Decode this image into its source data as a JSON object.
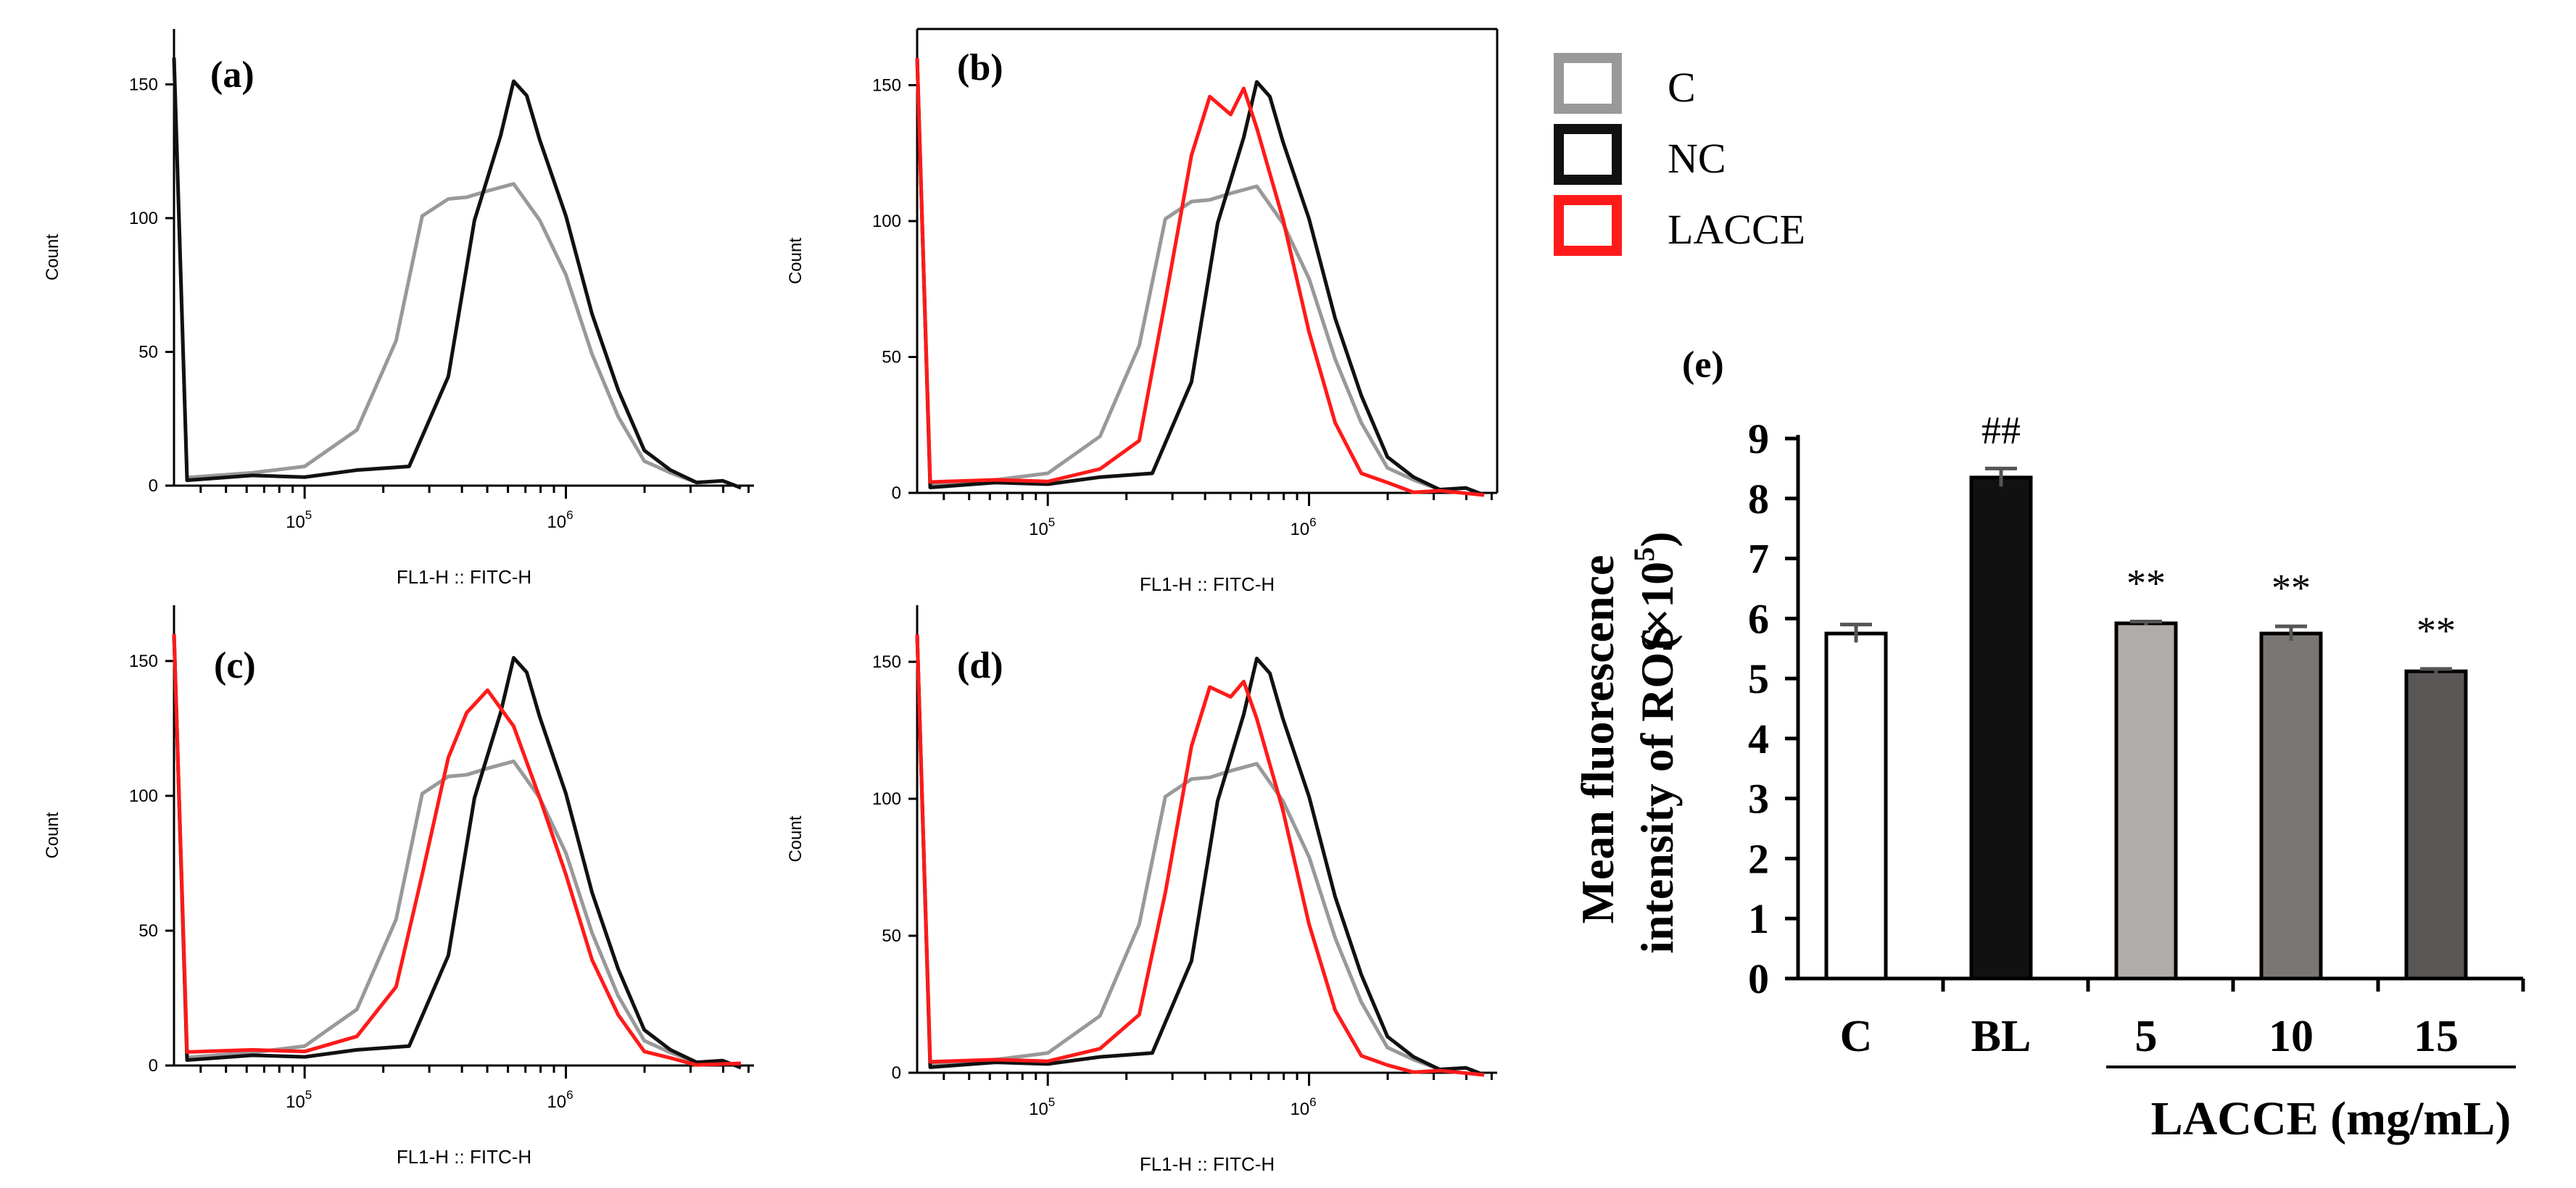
{
  "legend": [
    {
      "label": "C",
      "color": "#999999"
    },
    {
      "label": "NC",
      "color": "#111111"
    },
    {
      "label": "LACCE",
      "color": "#ff1a1a"
    }
  ],
  "histograms": {
    "xlabel": "FL1-H :: FITC-H",
    "ylabel": "Count",
    "x_ticks": [
      {
        "label": "10",
        "exp": "5",
        "log": 5
      },
      {
        "label": "10",
        "exp": "6",
        "log": 6
      }
    ],
    "x_log_range": [
      4.5,
      6.72
    ],
    "y_ticks": [
      0,
      50,
      100,
      150
    ],
    "y_range": [
      0,
      168
    ],
    "panels": [
      {
        "label": "(a)",
        "series": [
          "C",
          "NC"
        ]
      },
      {
        "label": "(b)",
        "series": [
          "C",
          "NC",
          "LACCE"
        ]
      },
      {
        "label": "(c)",
        "series": [
          "C",
          "NC",
          "LACCE"
        ]
      },
      {
        "label": "(d)",
        "series": [
          "C",
          "NC",
          "LACCE"
        ]
      }
    ]
  },
  "chart_data": [
    {
      "type": "line",
      "title": "(a)",
      "xlabel": "FL1-H :: FITC-H",
      "ylabel": "Count",
      "xscale": "log",
      "xlim_log10": [
        4.5,
        6.72
      ],
      "ylim": [
        0,
        168
      ],
      "series": [
        {
          "name": "C",
          "color": "#999999",
          "x": [
            4.55,
            4.8,
            5.0,
            5.2,
            5.35,
            5.45,
            5.55,
            5.62,
            5.7,
            5.8,
            5.9,
            6.0,
            6.1,
            6.2,
            6.3,
            6.4,
            6.5,
            6.6
          ],
          "y": [
            3,
            4,
            8,
            20,
            55,
            100,
            108,
            107,
            111,
            112,
            100,
            78,
            50,
            25,
            10,
            4,
            2,
            1
          ]
        },
        {
          "name": "NC",
          "color": "#111111",
          "x": [
            4.55,
            4.8,
            5.0,
            5.2,
            5.4,
            5.55,
            5.65,
            5.75,
            5.8,
            5.85,
            5.9,
            6.0,
            6.1,
            6.2,
            6.3,
            6.4,
            6.5,
            6.6
          ],
          "y": [
            2,
            3,
            4,
            5,
            8,
            40,
            100,
            130,
            152,
            145,
            130,
            100,
            65,
            35,
            14,
            5,
            2,
            1
          ]
        }
      ]
    },
    {
      "type": "line",
      "title": "(b)",
      "xlabel": "FL1-H :: FITC-H",
      "ylabel": "Count",
      "xscale": "log",
      "xlim_log10": [
        4.5,
        6.72
      ],
      "ylim": [
        0,
        168
      ],
      "series": [
        {
          "name": "C",
          "color": "#999999",
          "x": [
            4.55,
            4.8,
            5.0,
            5.2,
            5.35,
            5.45,
            5.55,
            5.62,
            5.7,
            5.8,
            5.9,
            6.0,
            6.1,
            6.2,
            6.3,
            6.4,
            6.5,
            6.6
          ],
          "y": [
            3,
            4,
            8,
            20,
            55,
            100,
            108,
            107,
            111,
            112,
            100,
            78,
            50,
            25,
            10,
            4,
            2,
            1
          ]
        },
        {
          "name": "NC",
          "color": "#111111",
          "x": [
            4.55,
            4.8,
            5.0,
            5.2,
            5.4,
            5.55,
            5.65,
            5.75,
            5.8,
            5.85,
            5.9,
            6.0,
            6.1,
            6.2,
            6.3,
            6.4,
            6.5,
            6.6
          ],
          "y": [
            2,
            3,
            4,
            5,
            8,
            40,
            100,
            130,
            152,
            145,
            130,
            100,
            65,
            35,
            14,
            5,
            2,
            1
          ]
        },
        {
          "name": "LACCE",
          "color": "#ff1a1a",
          "x": [
            4.55,
            4.8,
            5.0,
            5.2,
            5.35,
            5.45,
            5.55,
            5.62,
            5.7,
            5.75,
            5.8,
            5.9,
            6.0,
            6.1,
            6.2,
            6.3,
            6.4,
            6.5
          ],
          "y": [
            4,
            4,
            5,
            8,
            20,
            70,
            125,
            145,
            140,
            148,
            135,
            100,
            60,
            25,
            8,
            3,
            1,
            0
          ]
        }
      ]
    },
    {
      "type": "line",
      "title": "(c)",
      "xlabel": "FL1-H :: FITC-H",
      "ylabel": "Count",
      "xscale": "log",
      "xlim_log10": [
        4.5,
        6.72
      ],
      "ylim": [
        0,
        168
      ],
      "series": [
        {
          "name": "C",
          "color": "#999999",
          "x": [
            4.55,
            4.8,
            5.0,
            5.2,
            5.35,
            5.45,
            5.55,
            5.62,
            5.7,
            5.8,
            5.9,
            6.0,
            6.1,
            6.2,
            6.3,
            6.4,
            6.5,
            6.6
          ],
          "y": [
            3,
            4,
            8,
            20,
            55,
            100,
            108,
            107,
            111,
            112,
            100,
            78,
            50,
            25,
            10,
            4,
            2,
            1
          ]
        },
        {
          "name": "NC",
          "color": "#111111",
          "x": [
            4.55,
            4.8,
            5.0,
            5.2,
            5.4,
            5.55,
            5.65,
            5.75,
            5.8,
            5.85,
            5.9,
            6.0,
            6.1,
            6.2,
            6.3,
            6.4,
            6.5,
            6.6
          ],
          "y": [
            2,
            3,
            4,
            5,
            8,
            40,
            100,
            130,
            152,
            145,
            130,
            100,
            65,
            35,
            14,
            5,
            2,
            1
          ]
        },
        {
          "name": "LACCE",
          "color": "#ff1a1a",
          "x": [
            4.55,
            4.8,
            5.0,
            5.2,
            5.35,
            5.45,
            5.55,
            5.62,
            5.7,
            5.8,
            5.9,
            6.0,
            6.1,
            6.2,
            6.3,
            6.4,
            6.5
          ],
          "y": [
            5,
            5,
            6,
            10,
            30,
            70,
            115,
            130,
            140,
            125,
            100,
            70,
            40,
            18,
            6,
            2,
            1
          ]
        }
      ]
    },
    {
      "type": "line",
      "title": "(d)",
      "xlabel": "FL1-H :: FITC-H",
      "ylabel": "Count",
      "xscale": "log",
      "xlim_log10": [
        4.5,
        6.72
      ],
      "ylim": [
        0,
        168
      ],
      "series": [
        {
          "name": "C",
          "color": "#999999",
          "x": [
            4.55,
            4.8,
            5.0,
            5.2,
            5.35,
            5.45,
            5.55,
            5.62,
            5.7,
            5.8,
            5.9,
            6.0,
            6.1,
            6.2,
            6.3,
            6.4,
            6.5,
            6.6
          ],
          "y": [
            3,
            4,
            8,
            20,
            55,
            100,
            108,
            107,
            111,
            112,
            100,
            78,
            50,
            25,
            10,
            4,
            2,
            1
          ]
        },
        {
          "name": "NC",
          "color": "#111111",
          "x": [
            4.55,
            4.8,
            5.0,
            5.2,
            5.4,
            5.55,
            5.65,
            5.75,
            5.8,
            5.85,
            5.9,
            6.0,
            6.1,
            6.2,
            6.3,
            6.4,
            6.5,
            6.6
          ],
          "y": [
            2,
            3,
            4,
            5,
            8,
            40,
            100,
            130,
            152,
            145,
            130,
            100,
            65,
            35,
            14,
            5,
            2,
            1
          ]
        },
        {
          "name": "LACCE",
          "color": "#ff1a1a",
          "x": [
            4.55,
            4.8,
            5.0,
            5.2,
            5.35,
            5.45,
            5.55,
            5.62,
            5.7,
            5.75,
            5.8,
            5.9,
            6.0,
            6.1,
            6.2,
            6.3,
            6.4,
            6.5
          ],
          "y": [
            4,
            4,
            5,
            8,
            22,
            65,
            120,
            140,
            138,
            142,
            130,
            95,
            55,
            22,
            7,
            2,
            1,
            0
          ]
        }
      ]
    },
    {
      "type": "bar",
      "title": "(e)",
      "ylabel_line1": "Mean fluorescence",
      "ylabel_line2": "intensity of ROS",
      "ylabel_unit": "(×10",
      "ylabel_unit_exp": "5",
      "ylabel_unit_close": ")",
      "xlabel": "LACCE (mg/mL)",
      "categories": [
        "C",
        "BL",
        "5",
        "10",
        "15"
      ],
      "values": [
        5.75,
        8.35,
        5.92,
        5.75,
        5.12
      ],
      "errors": [
        0.15,
        0.15,
        0.03,
        0.12,
        0.04
      ],
      "annotations": [
        "",
        "##",
        "**",
        "**",
        "**"
      ],
      "colors": [
        "#ffffff",
        "#111111",
        "#b0acaa",
        "#7a7674",
        "#5a5656"
      ],
      "ylim": [
        0,
        9
      ],
      "yticks": [
        0,
        1,
        2,
        3,
        4,
        5,
        6,
        7,
        8,
        9
      ]
    }
  ]
}
